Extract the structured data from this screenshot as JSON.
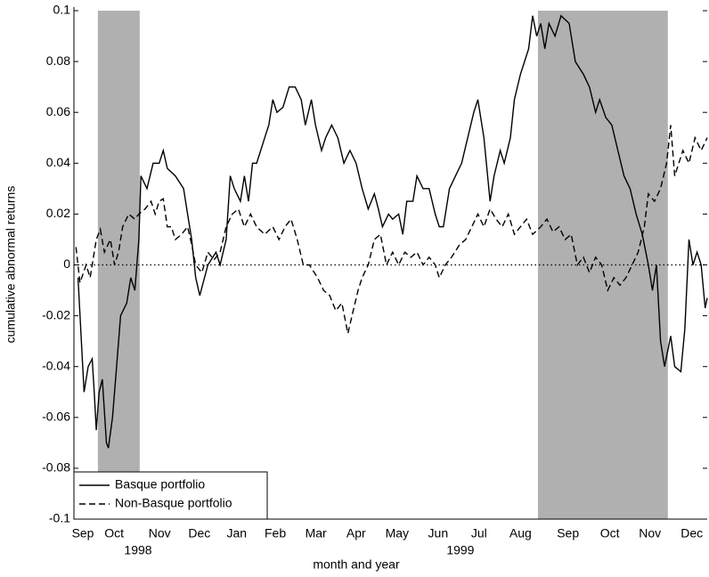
{
  "chart_data": {
    "type": "line",
    "xlabel": "month and year",
    "ylabel": "cumulative abnormal returns",
    "xlim": [
      0,
      15.6
    ],
    "ylim": [
      -0.1,
      0.1
    ],
    "xticks": [
      {
        "value": 0.22,
        "label": "Sep"
      },
      {
        "value": 0.99,
        "label": "Oct"
      },
      {
        "value": 2.11,
        "label": "Nov"
      },
      {
        "value": 3.09,
        "label": "Dec"
      },
      {
        "value": 4.01,
        "label": "Jan"
      },
      {
        "value": 4.96,
        "label": "Feb"
      },
      {
        "value": 5.96,
        "label": "Mar"
      },
      {
        "value": 6.95,
        "label": "Apr"
      },
      {
        "value": 7.96,
        "label": "May"
      },
      {
        "value": 8.97,
        "label": "Jun"
      },
      {
        "value": 9.98,
        "label": "Jul"
      },
      {
        "value": 11.0,
        "label": "Aug"
      },
      {
        "value": 12.17,
        "label": "Sep"
      },
      {
        "value": 13.2,
        "label": "Oct"
      },
      {
        "value": 14.19,
        "label": "Nov"
      },
      {
        "value": 15.22,
        "label": "Dec"
      }
    ],
    "year_ticks": [
      {
        "value": 1.58,
        "label": "1998"
      },
      {
        "value": 9.52,
        "label": "1999"
      }
    ],
    "yticks": [
      -0.1,
      -0.08,
      -0.06,
      -0.04,
      -0.02,
      0,
      0.02,
      0.04,
      0.06,
      0.08,
      0.1
    ],
    "shaded": [
      [
        0.59,
        1.62
      ],
      [
        11.43,
        14.63
      ]
    ],
    "shade_color": "#b0b0b0",
    "reference_line": 0,
    "legend": "lower left",
    "series": [
      {
        "name": "Basque portfolio",
        "color": "#000000",
        "dash": "solid",
        "x": [
          0.1,
          0.2,
          0.25,
          0.35,
          0.45,
          0.5,
          0.55,
          0.62,
          0.7,
          0.8,
          0.85,
          0.95,
          1.05,
          1.15,
          1.3,
          1.4,
          1.5,
          1.6,
          1.65,
          1.8,
          1.95,
          2.1,
          2.2,
          2.3,
          2.5,
          2.7,
          2.8,
          2.9,
          3.0,
          3.1,
          3.3,
          3.5,
          3.6,
          3.75,
          3.85,
          3.95,
          4.1,
          4.2,
          4.3,
          4.4,
          4.5,
          4.6,
          4.7,
          4.8,
          4.9,
          5.0,
          5.15,
          5.3,
          5.45,
          5.6,
          5.7,
          5.85,
          5.95,
          6.1,
          6.2,
          6.35,
          6.5,
          6.65,
          6.8,
          6.95,
          7.1,
          7.25,
          7.4,
          7.5,
          7.6,
          7.75,
          7.85,
          8.0,
          8.1,
          8.2,
          8.35,
          8.45,
          8.6,
          8.75,
          8.9,
          9.0,
          9.1,
          9.25,
          9.4,
          9.55,
          9.7,
          9.85,
          9.95,
          10.1,
          10.25,
          10.35,
          10.5,
          10.6,
          10.75,
          10.85,
          11.0,
          11.1,
          11.2,
          11.3,
          11.4,
          11.5,
          11.6,
          11.7,
          11.85,
          12.0,
          12.2,
          12.35,
          12.55,
          12.7,
          12.85,
          12.95,
          13.1,
          13.25,
          13.4,
          13.55,
          13.7,
          13.85,
          14.0,
          14.15,
          14.25,
          14.35,
          14.45,
          14.55,
          14.7,
          14.8,
          14.95,
          15.05,
          15.15,
          15.25,
          15.35,
          15.45,
          15.55,
          15.6
        ],
        "values": [
          -0.005,
          -0.035,
          -0.05,
          -0.04,
          -0.037,
          -0.05,
          -0.065,
          -0.05,
          -0.045,
          -0.07,
          -0.072,
          -0.06,
          -0.04,
          -0.02,
          -0.015,
          -0.005,
          -0.01,
          0.01,
          0.035,
          0.03,
          0.04,
          0.04,
          0.045,
          0.038,
          0.035,
          0.03,
          0.02,
          0.01,
          -0.005,
          -0.012,
          0.0,
          0.005,
          0.0,
          0.01,
          0.035,
          0.03,
          0.025,
          0.035,
          0.025,
          0.04,
          0.04,
          0.045,
          0.05,
          0.055,
          0.065,
          0.06,
          0.062,
          0.07,
          0.07,
          0.065,
          0.055,
          0.065,
          0.055,
          0.045,
          0.05,
          0.055,
          0.05,
          0.04,
          0.045,
          0.04,
          0.03,
          0.022,
          0.028,
          0.022,
          0.015,
          0.02,
          0.018,
          0.02,
          0.012,
          0.025,
          0.025,
          0.035,
          0.03,
          0.03,
          0.02,
          0.015,
          0.015,
          0.03,
          0.035,
          0.04,
          0.05,
          0.06,
          0.065,
          0.05,
          0.025,
          0.035,
          0.045,
          0.04,
          0.05,
          0.065,
          0.075,
          0.08,
          0.085,
          0.098,
          0.09,
          0.095,
          0.085,
          0.095,
          0.09,
          0.098,
          0.095,
          0.08,
          0.075,
          0.07,
          0.06,
          0.065,
          0.058,
          0.055,
          0.045,
          0.035,
          0.03,
          0.02,
          0.012,
          0.0,
          -0.01,
          0.0,
          -0.03,
          -0.04,
          -0.028,
          -0.04,
          -0.042,
          -0.025,
          0.01,
          0.0,
          0.005,
          0.0,
          -0.017,
          -0.013
        ]
      },
      {
        "name": "Non-Basque portfolio",
        "color": "#000000",
        "dash": "dashed",
        "x": [
          0.05,
          0.15,
          0.3,
          0.4,
          0.55,
          0.65,
          0.75,
          0.9,
          1.0,
          1.1,
          1.2,
          1.35,
          1.5,
          1.6,
          1.75,
          1.9,
          2.0,
          2.1,
          2.2,
          2.3,
          2.4,
          2.5,
          2.65,
          2.8,
          2.9,
          3.0,
          3.15,
          3.3,
          3.45,
          3.6,
          3.75,
          3.9,
          4.05,
          4.2,
          4.35,
          4.5,
          4.7,
          4.9,
          5.05,
          5.2,
          5.35,
          5.5,
          5.65,
          5.8,
          6.0,
          6.15,
          6.3,
          6.45,
          6.6,
          6.75,
          6.85,
          7.0,
          7.1,
          7.25,
          7.4,
          7.55,
          7.7,
          7.85,
          8.0,
          8.15,
          8.3,
          8.45,
          8.6,
          8.75,
          8.9,
          9.0,
          9.15,
          9.3,
          9.5,
          9.65,
          9.8,
          9.95,
          10.1,
          10.25,
          10.4,
          10.55,
          10.7,
          10.85,
          11.0,
          11.15,
          11.3,
          11.5,
          11.65,
          11.8,
          11.95,
          12.1,
          12.25,
          12.4,
          12.55,
          12.7,
          12.85,
          13.0,
          13.15,
          13.3,
          13.45,
          13.6,
          13.75,
          13.9,
          14.05,
          14.15,
          14.3,
          14.45,
          14.6,
          14.7,
          14.8,
          15.0,
          15.15,
          15.3,
          15.45,
          15.6
        ],
        "values": [
          0.007,
          -0.007,
          0.0,
          -0.005,
          0.01,
          0.014,
          0.005,
          0.01,
          0.0,
          0.005,
          0.015,
          0.02,
          0.018,
          0.02,
          0.022,
          0.025,
          0.02,
          0.025,
          0.026,
          0.015,
          0.015,
          0.01,
          0.012,
          0.015,
          0.008,
          0.0,
          -0.003,
          0.005,
          0.002,
          0.005,
          0.015,
          0.02,
          0.022,
          0.015,
          0.02,
          0.015,
          0.012,
          0.015,
          0.01,
          0.015,
          0.018,
          0.01,
          0.0,
          0.0,
          -0.005,
          -0.01,
          -0.012,
          -0.018,
          -0.015,
          -0.027,
          -0.02,
          -0.01,
          -0.005,
          0.0,
          0.01,
          0.012,
          0.0,
          0.005,
          0.0,
          0.005,
          0.003,
          0.005,
          0.0,
          0.003,
          0.0,
          -0.005,
          0.0,
          0.003,
          0.008,
          0.01,
          0.015,
          0.02,
          0.015,
          0.022,
          0.018,
          0.015,
          0.02,
          0.012,
          0.015,
          0.018,
          0.012,
          0.015,
          0.018,
          0.013,
          0.015,
          0.01,
          0.012,
          0.0,
          0.003,
          -0.003,
          0.003,
          0.0,
          -0.01,
          -0.005,
          -0.008,
          -0.005,
          0.0,
          0.005,
          0.015,
          0.028,
          0.025,
          0.03,
          0.04,
          0.055,
          0.035,
          0.045,
          0.04,
          0.05,
          0.045,
          0.05
        ]
      }
    ]
  }
}
